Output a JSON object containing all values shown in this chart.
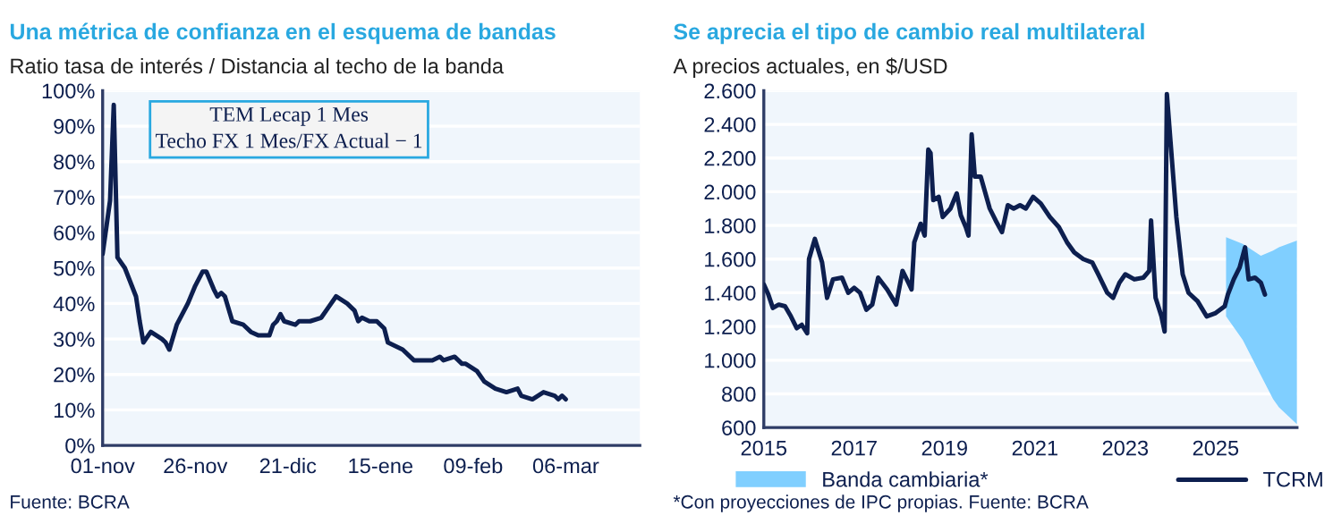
{
  "chart_data": [
    {
      "type": "line",
      "title": "Una métrica de confianza en el esquema de bandas",
      "subtitle": "Ratio tasa de interés / Distancia al techo de la banda",
      "x": [
        "2025-11-01",
        "2025-11-03",
        "2025-11-04",
        "2025-11-05",
        "2025-11-07",
        "2025-11-10",
        "2025-11-11",
        "2025-11-12",
        "2025-11-14",
        "2025-11-17",
        "2025-11-18",
        "2025-11-19",
        "2025-11-21",
        "2025-11-24",
        "2025-11-26",
        "2025-11-28",
        "2025-11-29",
        "2025-12-01",
        "2025-12-02",
        "2025-12-03",
        "2025-12-04",
        "2025-12-06",
        "2025-12-09",
        "2025-12-11",
        "2025-12-13",
        "2025-12-16",
        "2025-12-17",
        "2025-12-18",
        "2025-12-19",
        "2025-12-20",
        "2025-12-23",
        "2025-12-24",
        "2025-12-27",
        "2025-12-30",
        "2026-01-01",
        "2026-01-03",
        "2026-01-06",
        "2026-01-08",
        "2026-01-09",
        "2026-01-10",
        "2026-01-12",
        "2026-01-14",
        "2026-01-16",
        "2026-01-17",
        "2026-01-21",
        "2026-01-24",
        "2026-01-26",
        "2026-01-29",
        "2026-01-31",
        "2026-02-01",
        "2026-02-04",
        "2026-02-06",
        "2026-02-07",
        "2026-02-10",
        "2026-02-12",
        "2026-02-15",
        "2026-02-18",
        "2026-02-21",
        "2026-02-22",
        "2026-02-25",
        "2026-02-28",
        "2026-03-03",
        "2026-03-04",
        "2026-03-05",
        "2026-03-06"
      ],
      "series": [
        {
          "color": "#0d1f4f",
          "values": [
            54,
            69,
            96,
            53,
            50,
            42,
            35,
            29,
            32,
            30,
            29,
            27,
            34,
            40,
            45,
            49,
            49,
            44,
            42,
            43,
            42,
            35,
            34,
            32,
            31,
            31,
            34,
            35,
            37,
            35,
            34,
            35,
            35,
            36,
            39,
            42,
            40,
            38,
            35,
            36,
            35,
            35,
            33,
            29,
            27,
            24,
            24,
            24,
            25,
            24,
            25,
            23,
            23,
            21,
            18,
            16,
            15,
            16,
            14,
            13,
            15,
            14,
            13,
            14,
            13
          ]
        }
      ],
      "xlim": [
        "2025-11-01",
        "2026-03-26"
      ],
      "xticks": [
        {
          "value": "2025-11-01",
          "label": "01-nov"
        },
        {
          "value": "2025-11-26",
          "label": "26-nov"
        },
        {
          "value": "2025-12-21",
          "label": "21-dic"
        },
        {
          "value": "2026-01-15",
          "label": "15-ene"
        },
        {
          "value": "2026-02-09",
          "label": "09-feb"
        },
        {
          "value": "2026-03-06",
          "label": "06-mar"
        }
      ],
      "ylim": [
        0,
        100
      ],
      "yticks": [
        {
          "value": 0,
          "label": "0%"
        },
        {
          "value": 10,
          "label": "10%"
        },
        {
          "value": 20,
          "label": "20%"
        },
        {
          "value": 30,
          "label": "30%"
        },
        {
          "value": 40,
          "label": "40%"
        },
        {
          "value": 50,
          "label": "50%"
        },
        {
          "value": 60,
          "label": "60%"
        },
        {
          "value": 70,
          "label": "70%"
        },
        {
          "value": 80,
          "label": "80%"
        },
        {
          "value": 90,
          "label": "90%"
        },
        {
          "value": 100,
          "label": "100%"
        }
      ],
      "grid": "y",
      "legend": false,
      "annotations": [
        "TEM Lecap 1 Mes",
        "Techo FX 1 Mes/FX Actual − 1",
        "Fuente: BCRA"
      ]
    },
    {
      "type": "line",
      "title": "Se aprecia el tipo de cambio real multilateral",
      "subtitle": "A precios actuales, en $/USD",
      "series": [
        {
          "name": "Banda cambiaria*",
          "type": "area",
          "color": "#80cfff",
          "x": [
            2025.23,
            2025.6,
            2026.0,
            2026.27,
            2026.4,
            2026.8
          ],
          "values": [
            null,
            null,
            null,
            null,
            null,
            null
          ],
          "lower": [
            1260,
            1120,
            910,
            770,
            720,
            620
          ],
          "upper": [
            1730,
            1690,
            1620,
            1650,
            1670,
            1710
          ]
        },
        {
          "name": "TCRM",
          "type": "line",
          "color": "#0d1f4f",
          "x": [
            2015.0,
            2015.1,
            2015.2,
            2015.33,
            2015.47,
            2015.6,
            2015.73,
            2015.84,
            2015.96,
            2016.0,
            2016.13,
            2016.29,
            2016.4,
            2016.53,
            2016.73,
            2016.87,
            2017.0,
            2017.13,
            2017.27,
            2017.4,
            2017.53,
            2017.73,
            2017.93,
            2018.07,
            2018.2,
            2018.27,
            2018.33,
            2018.47,
            2018.56,
            2018.64,
            2018.69,
            2018.75,
            2018.87,
            2018.96,
            2019.13,
            2019.27,
            2019.36,
            2019.47,
            2019.53,
            2019.6,
            2019.67,
            2019.8,
            2020.0,
            2020.13,
            2020.27,
            2020.4,
            2020.53,
            2020.67,
            2020.8,
            2020.96,
            2021.13,
            2021.33,
            2021.53,
            2021.71,
            2021.87,
            2022.07,
            2022.27,
            2022.4,
            2022.6,
            2022.73,
            2022.87,
            2023.0,
            2023.2,
            2023.4,
            2023.53,
            2023.57,
            2023.67,
            2023.8,
            2023.87,
            2023.92,
            2024.0,
            2024.13,
            2024.27,
            2024.4,
            2024.6,
            2024.8,
            2025.0,
            2025.2,
            2025.27,
            2025.4,
            2025.53,
            2025.65,
            2025.73,
            2025.87,
            2026.0,
            2026.09
          ],
          "values": [
            1450,
            1390,
            1310,
            1330,
            1320,
            1260,
            1190,
            1210,
            1160,
            1600,
            1720,
            1580,
            1370,
            1480,
            1490,
            1400,
            1430,
            1400,
            1300,
            1330,
            1490,
            1420,
            1330,
            1530,
            1460,
            1420,
            1700,
            1810,
            1740,
            2250,
            2230,
            1950,
            1970,
            1850,
            1900,
            1990,
            1860,
            1790,
            1740,
            2340,
            2090,
            2090,
            1900,
            1830,
            1760,
            1920,
            1900,
            1920,
            1900,
            1970,
            1930,
            1850,
            1790,
            1700,
            1640,
            1600,
            1580,
            1510,
            1400,
            1370,
            1460,
            1510,
            1480,
            1490,
            1530,
            1830,
            1370,
            1260,
            1170,
            2580,
            2300,
            1850,
            1510,
            1400,
            1350,
            1260,
            1280,
            1320,
            1390,
            1480,
            1550,
            1670,
            1480,
            1490,
            1460,
            1390
          ]
        }
      ],
      "xlim": [
        2015,
        2026.8
      ],
      "xticks": [
        2015,
        2017,
        2019,
        2021,
        2023,
        2025
      ],
      "ylim": [
        600,
        2600
      ],
      "yticks": [
        {
          "value": 600,
          "label": "600"
        },
        {
          "value": 800,
          "label": "800"
        },
        {
          "value": 1000,
          "label": "1.000"
        },
        {
          "value": 1200,
          "label": "1.200"
        },
        {
          "value": 1400,
          "label": "1.400"
        },
        {
          "value": 1600,
          "label": "1.600"
        },
        {
          "value": 1800,
          "label": "1.800"
        },
        {
          "value": 2000,
          "label": "2.000"
        },
        {
          "value": 2200,
          "label": "2.200"
        },
        {
          "value": 2400,
          "label": "2.400"
        },
        {
          "value": 2600,
          "label": "2.600"
        }
      ],
      "grid": "y",
      "legend": "bottom",
      "annotations": [
        "*Con proyecciones de IPC propias. Fuente: BCRA"
      ]
    }
  ]
}
